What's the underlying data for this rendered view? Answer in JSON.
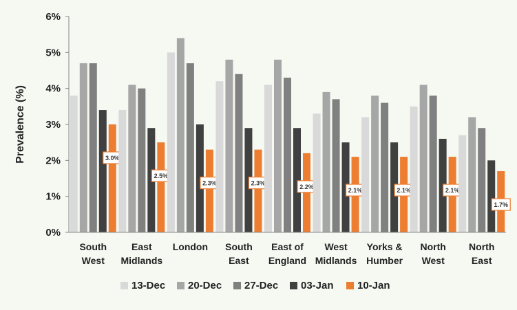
{
  "chart_data": {
    "type": "bar",
    "title": "",
    "xlabel": "",
    "ylabel": "Prevalence (%)",
    "ylim": [
      0,
      6
    ],
    "yticks": [
      "0%",
      "1%",
      "2%",
      "3%",
      "4%",
      "5%",
      "6%"
    ],
    "grid": false,
    "legend_position": "bottom",
    "categories": [
      [
        "South",
        "West"
      ],
      [
        "East",
        "Midlands"
      ],
      [
        "London"
      ],
      [
        "South",
        "East"
      ],
      [
        "East of",
        "England"
      ],
      [
        "West",
        "Midlands"
      ],
      [
        "Yorks &",
        "Humber"
      ],
      [
        "North",
        "West"
      ],
      [
        "North",
        "East"
      ]
    ],
    "series": [
      {
        "name": "13-Dec",
        "color": "#d9d9d9",
        "values": [
          3.8,
          3.4,
          5.0,
          4.2,
          4.1,
          3.3,
          3.2,
          3.5,
          2.7
        ]
      },
      {
        "name": "20-Dec",
        "color": "#a6a6a6",
        "values": [
          4.7,
          4.1,
          5.4,
          4.8,
          4.8,
          3.9,
          3.8,
          4.1,
          3.2
        ]
      },
      {
        "name": "27-Dec",
        "color": "#808080",
        "values": [
          4.7,
          4.0,
          4.7,
          4.4,
          4.3,
          3.7,
          3.6,
          3.8,
          2.9
        ]
      },
      {
        "name": "03-Jan",
        "color": "#404040",
        "values": [
          3.4,
          2.9,
          3.0,
          2.9,
          2.9,
          2.5,
          2.5,
          2.6,
          2.0
        ]
      },
      {
        "name": "10-Jan",
        "color": "#ed7d31",
        "values": [
          3.0,
          2.5,
          2.3,
          2.3,
          2.2,
          2.1,
          2.1,
          2.1,
          1.7
        ]
      }
    ],
    "data_labels": [
      "3.0%",
      "2.5%",
      "2.3%",
      "2.3%",
      "2.2%",
      "2.1%",
      "2.1%",
      "2.1%",
      "1.7%"
    ],
    "data_label_series": "10-Jan"
  }
}
